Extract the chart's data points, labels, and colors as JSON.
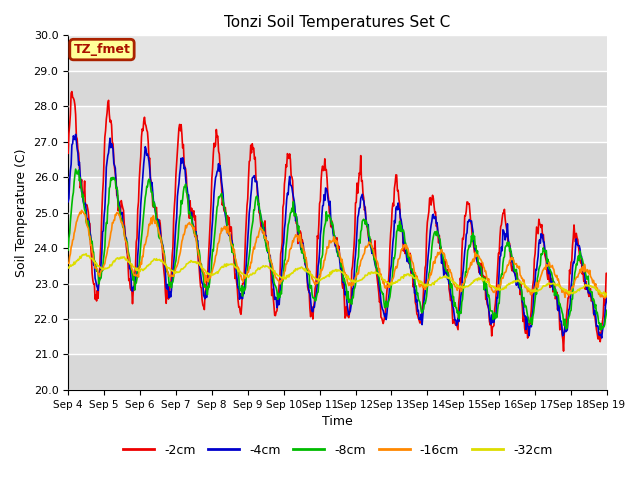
{
  "title": "Tonzi Soil Temperatures Set C",
  "xlabel": "Time",
  "ylabel": "Soil Temperature (C)",
  "ylim": [
    20.0,
    30.0
  ],
  "yticks": [
    20.0,
    21.0,
    22.0,
    23.0,
    24.0,
    25.0,
    26.0,
    27.0,
    28.0,
    29.0,
    30.0
  ],
  "x_labels": [
    "Sep 4",
    "Sep 5",
    "Sep 6",
    "Sep 7",
    "Sep 8",
    "Sep 9",
    "Sep 10",
    "Sep 11",
    "Sep 12",
    "Sep 13",
    "Sep 14",
    "Sep 15",
    "Sep 16",
    "Sep 17",
    "Sep 18",
    "Sep 19"
  ],
  "series": {
    "-2cm": {
      "color": "#ee0000",
      "lw": 1.2
    },
    "-4cm": {
      "color": "#0000cc",
      "lw": 1.2
    },
    "-8cm": {
      "color": "#00bb00",
      "lw": 1.2
    },
    "-16cm": {
      "color": "#ff8800",
      "lw": 1.2
    },
    "-32cm": {
      "color": "#dddd00",
      "lw": 1.2
    }
  },
  "annotation": "TZ_fmet",
  "annotation_bg": "#ffff99",
  "annotation_border": "#aa2200",
  "bg_color": "#dedede",
  "band_color": "#e8e8e8",
  "fig_bg": "#ffffff"
}
